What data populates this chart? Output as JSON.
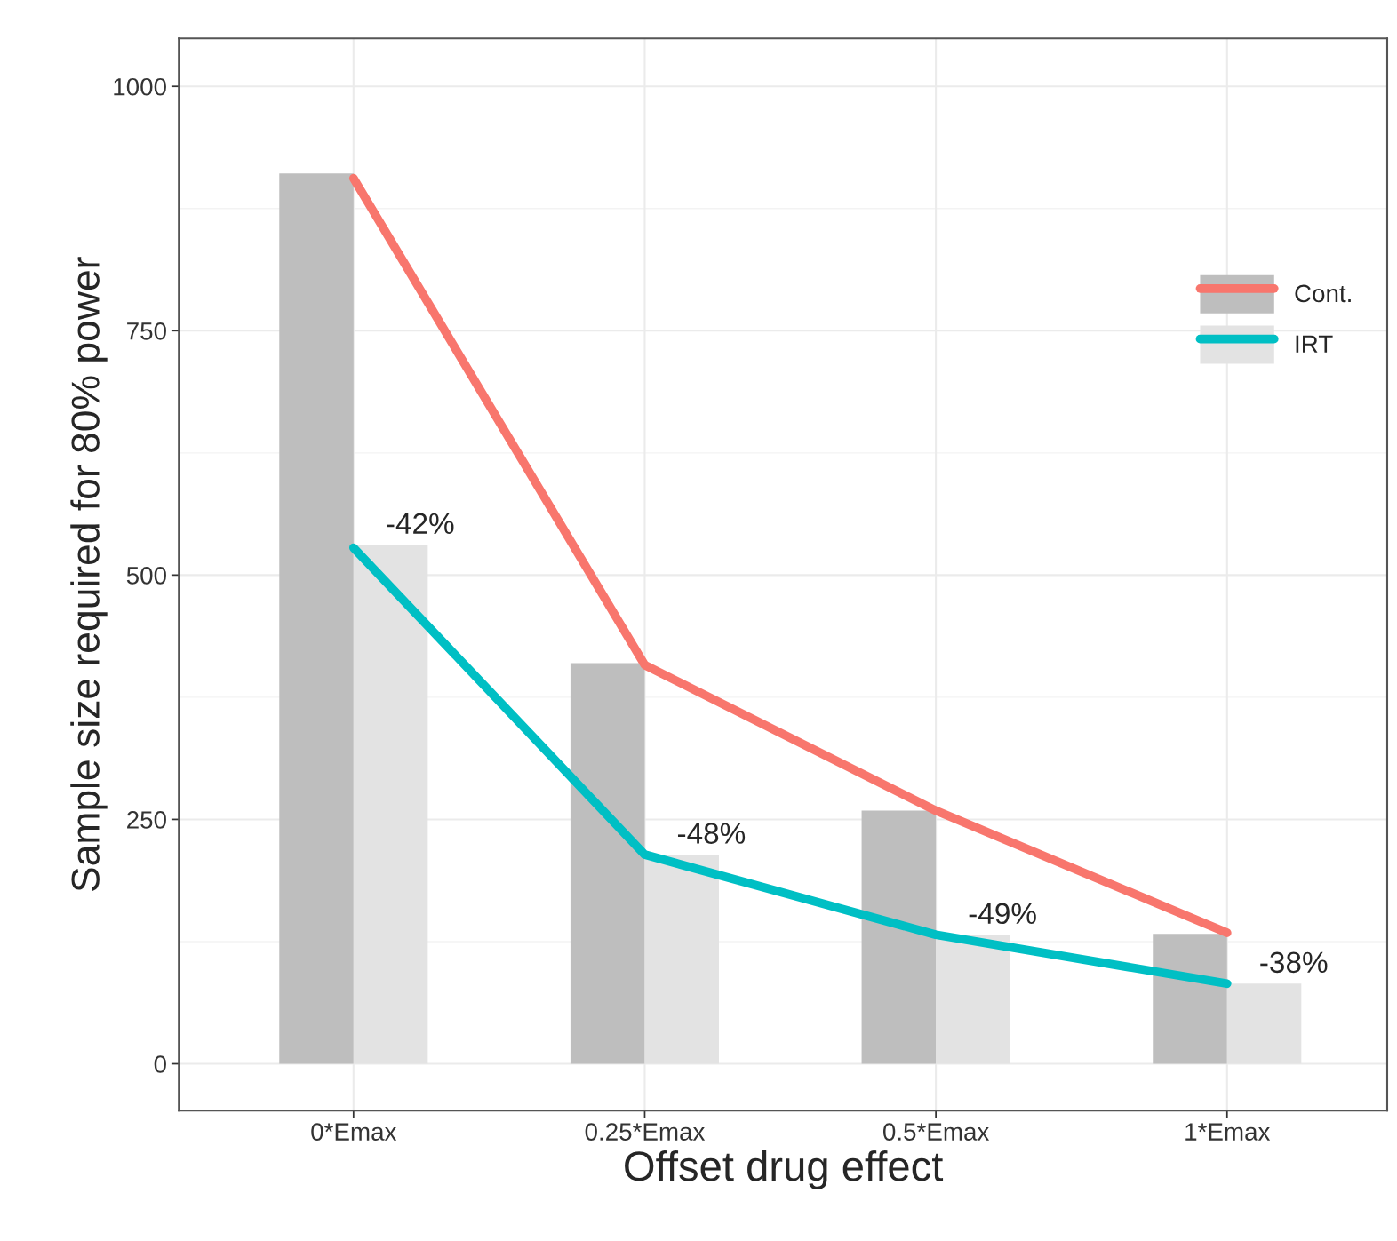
{
  "chart_data": {
    "type": "bar",
    "xlabel": "Offset drug effect",
    "ylabel": "Sample size required for 80% power",
    "categories": [
      "0*Emax",
      "0.25*Emax",
      "0.5*Emax",
      "1*Emax"
    ],
    "series": [
      {
        "name": "Cont.",
        "color": "#bebebe",
        "values": [
          911,
          410,
          259,
          133
        ]
      },
      {
        "name": "IRT",
        "color": "#e3e3e3",
        "values": [
          531,
          214,
          132,
          82
        ]
      },
      {
        "type": "line",
        "color": "#f8766d",
        "values": [
          906,
          408,
          259,
          134
        ]
      },
      {
        "type": "line",
        "color": "#00bfc4",
        "values": [
          528,
          214,
          132,
          82
        ]
      }
    ],
    "annotations": [
      {
        "text": "-42%",
        "x": "0*Emax",
        "y": 531
      },
      {
        "text": "-48%",
        "x": "0.25*Emax",
        "y": 214
      },
      {
        "text": "-49%",
        "x": "0.5*Emax",
        "y": 132
      },
      {
        "text": "-38%",
        "x": "1*Emax",
        "y": 82
      }
    ],
    "ylim": [
      -48,
      1049
    ],
    "yticks": [
      0,
      250,
      500,
      750,
      1000
    ],
    "grid": true,
    "legend": "top right"
  }
}
